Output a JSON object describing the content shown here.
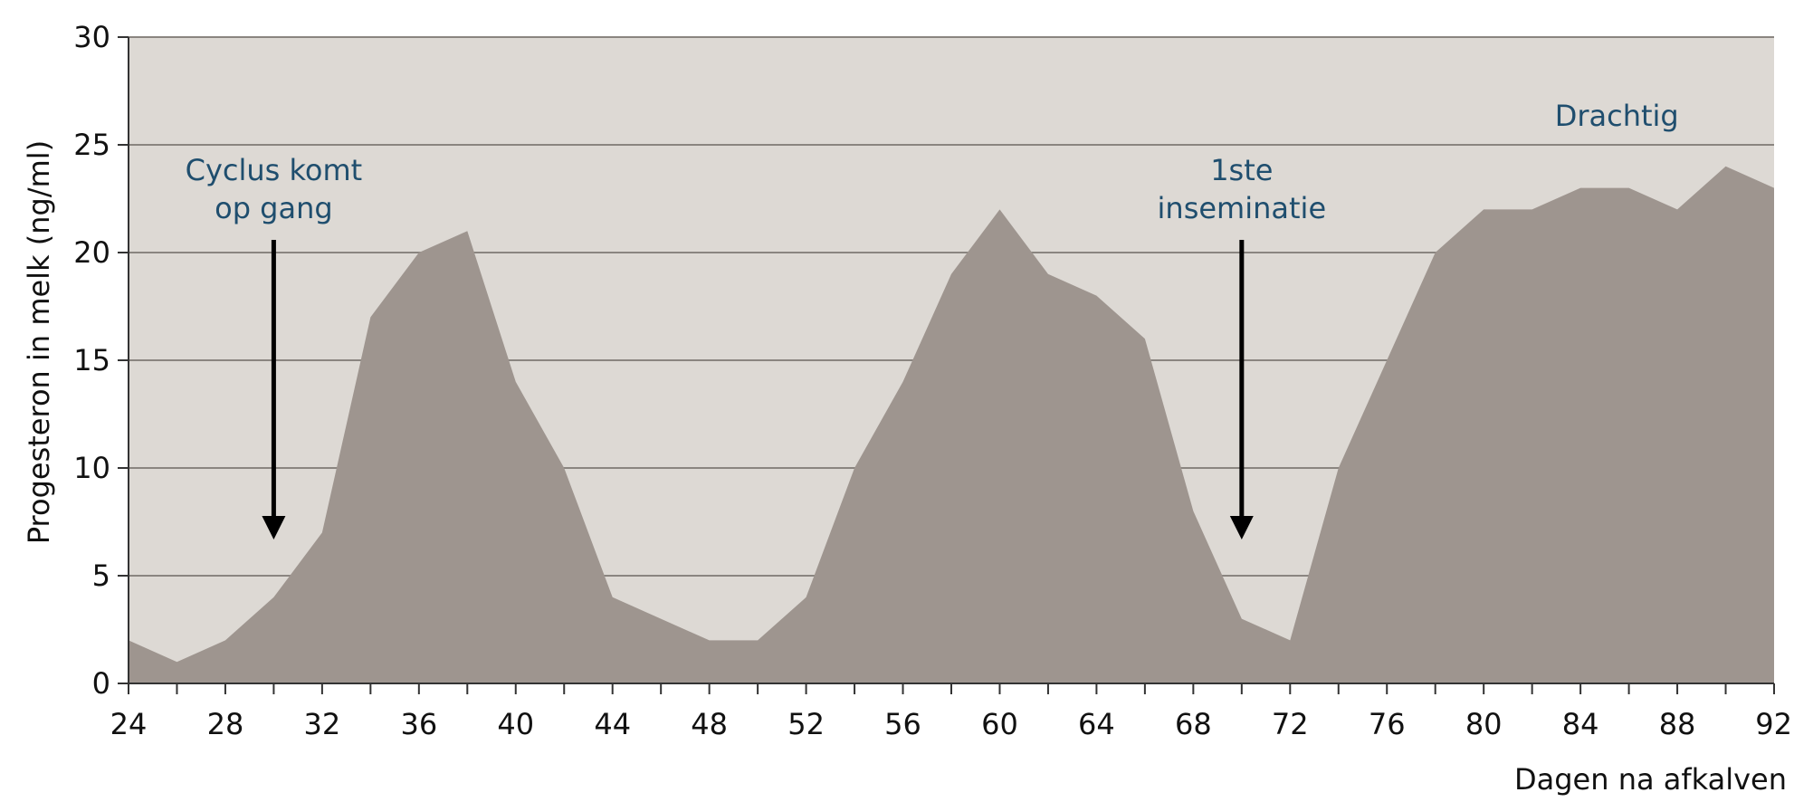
{
  "chart_data": {
    "type": "area",
    "title": "",
    "xlabel": "Dagen na afkalven",
    "ylabel": "Progesteron in melk (ng/ml)",
    "xlim": [
      24,
      92
    ],
    "ylim": [
      0,
      30
    ],
    "x_ticks": [
      24,
      28,
      32,
      36,
      40,
      44,
      48,
      52,
      56,
      60,
      64,
      68,
      72,
      76,
      80,
      84,
      88,
      92
    ],
    "x_minor_step": 2,
    "y_ticks": [
      0,
      5,
      10,
      15,
      20,
      25,
      30
    ],
    "grid": "horizontal",
    "colors": {
      "plot_background": "#ddd9d4",
      "area_fill": "#9e958f",
      "grid_line": "#8a8580",
      "annotation_text": "#1f4e6e",
      "arrow": "#000000"
    },
    "series": [
      {
        "x": [
          24,
          26,
          28,
          30,
          32,
          34,
          36,
          38,
          40,
          42,
          44,
          46,
          48,
          50,
          52,
          54,
          56,
          58,
          60,
          62,
          64,
          66,
          68,
          70,
          72,
          74,
          76,
          78,
          80,
          82,
          84,
          86,
          88,
          90,
          92
        ],
        "values": [
          2,
          1,
          2,
          4,
          7,
          17,
          20,
          21,
          14,
          10,
          4,
          3,
          2,
          2,
          4,
          10,
          14,
          19,
          22,
          19,
          18,
          16,
          8,
          3,
          2,
          10,
          15,
          20,
          22,
          22,
          23,
          23,
          22,
          24,
          23
        ]
      }
    ],
    "annotations": [
      {
        "lines": [
          "Cyclus komt",
          "op gang"
        ],
        "x": 30,
        "arrow": true
      },
      {
        "lines": [
          "1ste",
          "inseminatie"
        ],
        "x": 70,
        "arrow": true
      },
      {
        "lines": [
          "Drachtig"
        ],
        "x": 85.5,
        "arrow": false
      }
    ]
  }
}
